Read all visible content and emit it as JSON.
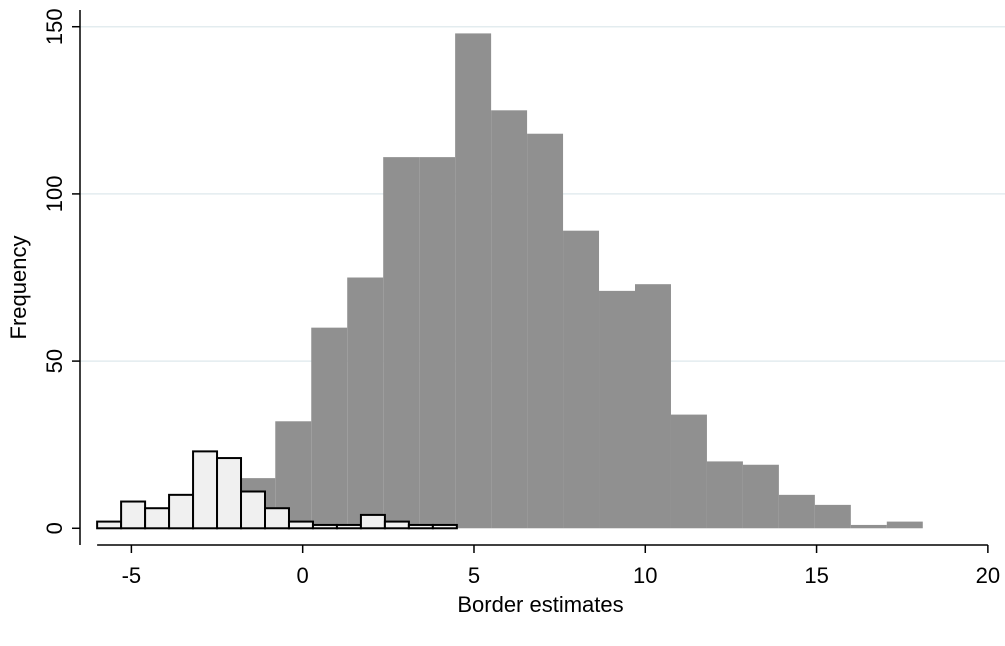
{
  "chart_data": {
    "type": "bar",
    "title": "",
    "xlabel": "Border estimates",
    "ylabel": "Frequency",
    "xlim": [
      -6.5,
      20.5
    ],
    "ylim": [
      -5,
      155
    ],
    "xticks": [
      -5,
      0,
      5,
      10,
      15,
      20
    ],
    "xtick_labels": [
      "-5",
      "0",
      "5",
      "10",
      "15",
      "20"
    ],
    "yticks": [
      0,
      50,
      100,
      150
    ],
    "ytick_labels": [
      "0",
      "50",
      "100",
      "150"
    ],
    "grid": "horizontal",
    "legend": "none",
    "series": [
      {
        "style": "filled-gray",
        "color": "#909090",
        "bins": [
          {
            "x0": -1.85,
            "x1": -0.8,
            "value": 15
          },
          {
            "x0": -0.8,
            "x1": 0.25,
            "value": 32
          },
          {
            "x0": 0.25,
            "x1": 1.3,
            "value": 60
          },
          {
            "x0": 1.3,
            "x1": 2.35,
            "value": 75
          },
          {
            "x0": 2.35,
            "x1": 3.4,
            "value": 111
          },
          {
            "x0": 3.4,
            "x1": 4.45,
            "value": 111
          },
          {
            "x0": 4.45,
            "x1": 5.5,
            "value": 148
          },
          {
            "x0": 5.5,
            "x1": 6.55,
            "value": 125
          },
          {
            "x0": 6.55,
            "x1": 7.6,
            "value": 118
          },
          {
            "x0": 7.6,
            "x1": 8.65,
            "value": 89
          },
          {
            "x0": 8.65,
            "x1": 9.7,
            "value": 71
          },
          {
            "x0": 9.7,
            "x1": 10.75,
            "value": 73
          },
          {
            "x0": 10.75,
            "x1": 11.8,
            "value": 34
          },
          {
            "x0": 11.8,
            "x1": 12.85,
            "value": 20
          },
          {
            "x0": 12.85,
            "x1": 13.9,
            "value": 19
          },
          {
            "x0": 13.9,
            "x1": 14.95,
            "value": 10
          },
          {
            "x0": 14.95,
            "x1": 16.0,
            "value": 7
          },
          {
            "x0": 16.0,
            "x1": 17.05,
            "value": 1
          },
          {
            "x0": 17.05,
            "x1": 18.1,
            "value": 2
          }
        ]
      },
      {
        "style": "outlined-white",
        "color": "#f0f0f0",
        "stroke": "#000000",
        "bins": [
          {
            "x0": -6.0,
            "x1": -5.3,
            "value": 2
          },
          {
            "x0": -5.3,
            "x1": -4.6,
            "value": 8
          },
          {
            "x0": -4.6,
            "x1": -3.9,
            "value": 6
          },
          {
            "x0": -3.9,
            "x1": -3.2,
            "value": 10
          },
          {
            "x0": -3.2,
            "x1": -2.5,
            "value": 23
          },
          {
            "x0": -2.5,
            "x1": -1.8,
            "value": 21
          },
          {
            "x0": -1.8,
            "x1": -1.1,
            "value": 11
          },
          {
            "x0": -1.1,
            "x1": -0.4,
            "value": 6
          },
          {
            "x0": -0.4,
            "x1": 0.3,
            "value": 2
          },
          {
            "x0": 0.3,
            "x1": 1.0,
            "value": 1
          },
          {
            "x0": 1.0,
            "x1": 1.7,
            "value": 1
          },
          {
            "x0": 1.7,
            "x1": 2.4,
            "value": 4
          },
          {
            "x0": 2.4,
            "x1": 3.1,
            "value": 2
          },
          {
            "x0": 3.1,
            "x1": 3.8,
            "value": 1
          },
          {
            "x0": 3.8,
            "x1": 4.5,
            "value": 1
          }
        ]
      }
    ],
    "colors": {
      "grid": "#e3ecef",
      "axis": "#000000"
    }
  }
}
